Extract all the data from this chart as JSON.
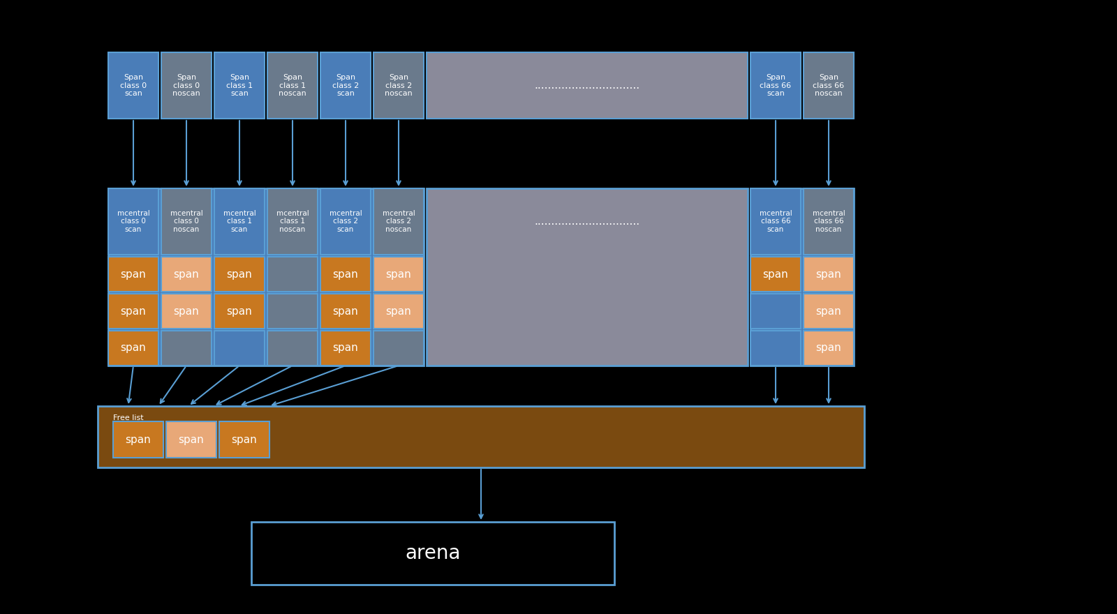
{
  "bg_color": "#000000",
  "blue_scan": "#4a7db8",
  "gray_noscan": "#6a7a8c",
  "gray_mid": "#8a8a9a",
  "orange_dark": "#c87820",
  "orange_light": "#e8a878",
  "brown_bg": "#7a4a10",
  "light_blue": "#5a9fd4",
  "arrow_color": "#5a9fd4",
  "labels_r1": [
    "Span\nclass 0\nscan",
    "Span\nclass 0\nnoscan",
    "Span\nclass 1\nscan",
    "Span\nclass 1\nnoscan",
    "Span\nclass 2\nscan",
    "Span\nclass 2\nnoscan",
    "Span\nclass 66\nscan",
    "Span\nclass 66\nnoscan"
  ],
  "labels_r2": [
    "mcentral\nclass 0\nscan",
    "mcentral\nclass 0\nnoscan",
    "mcentral\nclass 1\nscan",
    "mcentral\nclass 1\nnoscan",
    "mcentral\nclass 2\nscan",
    "mcentral\nclass 2\nnoscan",
    "mcentral\nclass 66\nscan",
    "mcentral\nclass 66\nnoscan"
  ],
  "dots_text": "...............................",
  "free_list_label": "Free list",
  "arena_label": "arena",
  "span_text": "span"
}
